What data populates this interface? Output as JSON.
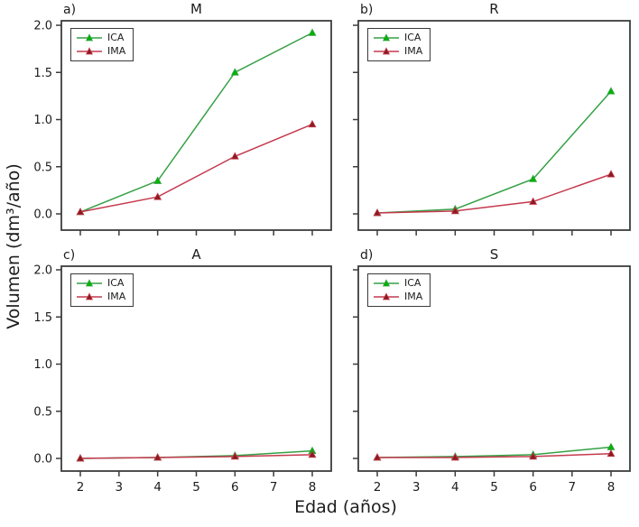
{
  "figure": {
    "xlabel": "Edad (años)",
    "ylabel": "Volumen (dm³/año)",
    "background": "#ffffff",
    "text_color": "#1c1c1c",
    "axis_color": "#3c3c3c"
  },
  "chart_data": [
    {
      "type": "line",
      "panel_label": "a)",
      "title": "M",
      "x": [
        2,
        4,
        6,
        8
      ],
      "xticks": [
        2,
        3,
        4,
        5,
        6,
        7,
        8
      ],
      "yticks": [
        0.0,
        0.5,
        1.0,
        1.5,
        2.0
      ],
      "xlim": [
        1.5,
        8.5
      ],
      "ylim": [
        0,
        2.0
      ],
      "grid": false,
      "legend_position": "top-left",
      "series": [
        {
          "name": "ICA",
          "color": "#35a045",
          "marker_color": "#00b400",
          "marker": "triangle",
          "values": [
            0.02,
            0.35,
            1.5,
            1.92
          ]
        },
        {
          "name": "IMA",
          "color": "#c43a4e",
          "marker_color": "#8b1a1f",
          "marker": "triangle",
          "values": [
            0.02,
            0.18,
            0.61,
            0.95
          ]
        }
      ]
    },
    {
      "type": "line",
      "panel_label": "b)",
      "title": "R",
      "x": [
        2,
        4,
        6,
        8
      ],
      "xticks": [
        2,
        3,
        4,
        5,
        6,
        7,
        8
      ],
      "yticks": [
        0.0,
        0.5,
        1.0,
        1.5,
        2.0
      ],
      "xlim": [
        1.5,
        8.5
      ],
      "ylim": [
        0,
        2.0
      ],
      "grid": false,
      "legend_position": "top-left",
      "series": [
        {
          "name": "ICA",
          "color": "#35a045",
          "marker_color": "#00b400",
          "marker": "triangle",
          "values": [
            0.01,
            0.05,
            0.37,
            1.3
          ]
        },
        {
          "name": "IMA",
          "color": "#c43a4e",
          "marker_color": "#8b1a1f",
          "marker": "triangle",
          "values": [
            0.01,
            0.03,
            0.13,
            0.42
          ]
        }
      ]
    },
    {
      "type": "line",
      "panel_label": "c)",
      "title": "A",
      "x": [
        2,
        4,
        6,
        8
      ],
      "xticks": [
        2,
        3,
        4,
        5,
        6,
        7,
        8
      ],
      "yticks": [
        0.0,
        0.5,
        1.0,
        1.5,
        2.0
      ],
      "xlim": [
        1.5,
        8.5
      ],
      "ylim": [
        0,
        2.0
      ],
      "grid": false,
      "legend_position": "top-left",
      "series": [
        {
          "name": "ICA",
          "color": "#35a045",
          "marker_color": "#00b400",
          "marker": "triangle",
          "values": [
            0.0,
            0.01,
            0.03,
            0.08
          ]
        },
        {
          "name": "IMA",
          "color": "#c43a4e",
          "marker_color": "#8b1a1f",
          "marker": "triangle",
          "values": [
            0.0,
            0.01,
            0.02,
            0.04
          ]
        }
      ]
    },
    {
      "type": "line",
      "panel_label": "d)",
      "title": "S",
      "x": [
        2,
        4,
        6,
        8
      ],
      "xticks": [
        2,
        3,
        4,
        5,
        6,
        7,
        8
      ],
      "yticks": [
        0.0,
        0.5,
        1.0,
        1.5,
        2.0
      ],
      "xlim": [
        1.5,
        8.5
      ],
      "ylim": [
        0,
        2.0
      ],
      "grid": false,
      "legend_position": "top-left",
      "series": [
        {
          "name": "ICA",
          "color": "#35a045",
          "marker_color": "#00b400",
          "marker": "triangle",
          "values": [
            0.01,
            0.02,
            0.04,
            0.12
          ]
        },
        {
          "name": "IMA",
          "color": "#c43a4e",
          "marker_color": "#8b1a1f",
          "marker": "triangle",
          "values": [
            0.01,
            0.01,
            0.02,
            0.05
          ]
        }
      ]
    }
  ]
}
